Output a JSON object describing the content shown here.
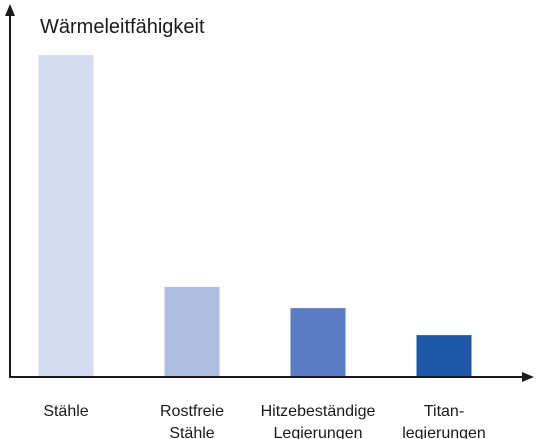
{
  "chart_data": {
    "type": "bar",
    "title": "Wärmeleitfähigkeit",
    "categories": [
      [
        "Stähle"
      ],
      [
        "Rostfreie",
        "Stähle"
      ],
      [
        "Hitzebeständige",
        "Legierungen"
      ],
      [
        "Titan-",
        "legierungen"
      ]
    ],
    "values": [
      100,
      28,
      21.4,
      13
    ],
    "colors": [
      "#d4daef",
      "#b0bce0",
      "#5b7cc4",
      "#1f57a8"
    ],
    "ylim": [
      0,
      114
    ]
  }
}
